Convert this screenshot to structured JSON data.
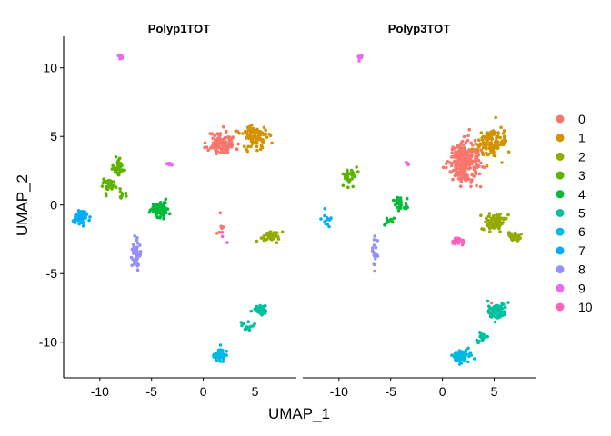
{
  "chart_data": {
    "type": "scatter",
    "title": "",
    "xlabel": "UMAP_1",
    "ylabel": "UMAP_2",
    "xlim": [
      -13.5,
      9.0
    ],
    "ylim": [
      -12.6,
      12.3
    ],
    "x_ticks": [
      -10,
      -5,
      0,
      5
    ],
    "y_ticks": [
      -10,
      -5,
      0,
      5,
      10
    ],
    "grid": false,
    "legend_position": "right",
    "facets": [
      "Polyp1TOT",
      "Polyp3TOT"
    ],
    "legend": [
      {
        "label": "0",
        "color": "#F8766D"
      },
      {
        "label": "1",
        "color": "#D39200"
      },
      {
        "label": "2",
        "color": "#93AA00"
      },
      {
        "label": "3",
        "color": "#5BB300"
      },
      {
        "label": "4",
        "color": "#00BA38"
      },
      {
        "label": "5",
        "color": "#00C19F"
      },
      {
        "label": "6",
        "color": "#00B9E3"
      },
      {
        "label": "7",
        "color": "#00ADFA"
      },
      {
        "label": "8",
        "color": "#9590FF"
      },
      {
        "label": "9",
        "color": "#E76BF3"
      },
      {
        "label": "10",
        "color": "#FF62BC"
      }
    ],
    "clusters": {
      "Polyp1TOT": [
        {
          "cluster": "0",
          "center": [
            1.8,
            4.5
          ],
          "spread": [
            1.2,
            0.8
          ],
          "n": 110
        },
        {
          "cluster": "0",
          "center": [
            1.7,
            -1.5
          ],
          "spread": [
            0.3,
            1.2
          ],
          "n": 6
        },
        {
          "cluster": "1",
          "center": [
            5.0,
            5.0
          ],
          "spread": [
            1.2,
            0.8
          ],
          "n": 90
        },
        {
          "cluster": "2",
          "center": [
            6.5,
            -2.3
          ],
          "spread": [
            0.9,
            0.35
          ],
          "n": 40
        },
        {
          "cluster": "3",
          "center": [
            -8.2,
            2.8
          ],
          "spread": [
            0.5,
            0.5
          ],
          "n": 35
        },
        {
          "cluster": "3",
          "center": [
            -9.2,
            1.5
          ],
          "spread": [
            0.5,
            0.5
          ],
          "n": 35
        },
        {
          "cluster": "3",
          "center": [
            -7.7,
            0.7
          ],
          "spread": [
            0.35,
            0.3
          ],
          "n": 10
        },
        {
          "cluster": "4",
          "center": [
            -4.2,
            -0.3
          ],
          "spread": [
            0.8,
            0.5
          ],
          "n": 90
        },
        {
          "cluster": "5",
          "center": [
            5.5,
            -7.6
          ],
          "spread": [
            0.6,
            0.35
          ],
          "n": 40
        },
        {
          "cluster": "5",
          "center": [
            4.2,
            -8.8
          ],
          "spread": [
            0.5,
            0.35
          ],
          "n": 15
        },
        {
          "cluster": "6",
          "center": [
            1.6,
            -10.9
          ],
          "spread": [
            0.5,
            0.4
          ],
          "n": 60
        },
        {
          "cluster": "7",
          "center": [
            -11.8,
            -0.9
          ],
          "spread": [
            0.5,
            0.4
          ],
          "n": 70
        },
        {
          "cluster": "8",
          "center": [
            -6.5,
            -3.5
          ],
          "spread": [
            0.4,
            1.0
          ],
          "n": 50
        },
        {
          "cluster": "9",
          "center": [
            -8.0,
            10.8
          ],
          "spread": [
            0.15,
            0.2
          ],
          "n": 12
        },
        {
          "cluster": "9",
          "center": [
            -3.3,
            3.0
          ],
          "spread": [
            0.3,
            0.1
          ],
          "n": 10
        },
        {
          "cluster": "10",
          "center": [
            1.8,
            -2.3
          ],
          "spread": [
            0.2,
            0.5
          ],
          "n": 3
        }
      ],
      "Polyp3TOT": [
        {
          "cluster": "0",
          "center": [
            2.0,
            3.2
          ],
          "spread": [
            1.3,
            1.3
          ],
          "n": 260
        },
        {
          "cluster": "0",
          "center": [
            5.0,
            -7.6
          ],
          "spread": [
            0.6,
            0.6
          ],
          "n": 6
        },
        {
          "cluster": "1",
          "center": [
            4.8,
            4.5
          ],
          "spread": [
            1.3,
            1.0
          ],
          "n": 120
        },
        {
          "cluster": "2",
          "center": [
            5.0,
            -1.2
          ],
          "spread": [
            1.0,
            0.6
          ],
          "n": 70
        },
        {
          "cluster": "2",
          "center": [
            7.0,
            -2.3
          ],
          "spread": [
            0.6,
            0.35
          ],
          "n": 40
        },
        {
          "cluster": "3",
          "center": [
            -9.0,
            2.2
          ],
          "spread": [
            0.7,
            0.8
          ],
          "n": 30
        },
        {
          "cluster": "4",
          "center": [
            -4.0,
            0.0
          ],
          "spread": [
            0.8,
            0.4
          ],
          "n": 30
        },
        {
          "cluster": "4",
          "center": [
            -5.2,
            -1.2
          ],
          "spread": [
            0.6,
            0.4
          ],
          "n": 10
        },
        {
          "cluster": "5",
          "center": [
            5.3,
            -7.7
          ],
          "spread": [
            0.8,
            0.5
          ],
          "n": 80
        },
        {
          "cluster": "5",
          "center": [
            3.8,
            -9.6
          ],
          "spread": [
            0.4,
            0.4
          ],
          "n": 20
        },
        {
          "cluster": "6",
          "center": [
            1.9,
            -11.0
          ],
          "spread": [
            0.8,
            0.4
          ],
          "n": 70
        },
        {
          "cluster": "7",
          "center": [
            -11.3,
            -0.9
          ],
          "spread": [
            0.4,
            0.6
          ],
          "n": 12
        },
        {
          "cluster": "8",
          "center": [
            -6.5,
            -3.8
          ],
          "spread": [
            0.3,
            1.0
          ],
          "n": 20
        },
        {
          "cluster": "9",
          "center": [
            -8.0,
            10.8
          ],
          "spread": [
            0.15,
            0.2
          ],
          "n": 10
        },
        {
          "cluster": "9",
          "center": [
            -3.4,
            3.0
          ],
          "spread": [
            0.3,
            0.1
          ],
          "n": 8
        },
        {
          "cluster": "10",
          "center": [
            1.5,
            -2.6
          ],
          "spread": [
            0.4,
            0.2
          ],
          "n": 30
        }
      ]
    }
  }
}
